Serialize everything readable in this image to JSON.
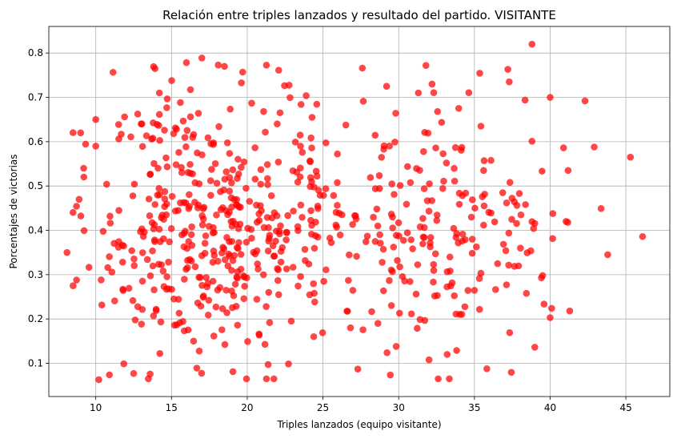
{
  "chart_data": {
    "type": "scatter",
    "title": "Relación entre triples lanzados y resultado del partido. VISITANTE",
    "xlabel": "Triples lanzados (equipo visitante)",
    "ylabel": "Porcentajes de victorias",
    "xlim": [
      6.9,
      47.9
    ],
    "ylim": [
      0.025,
      0.86
    ],
    "xticks": [
      10,
      15,
      20,
      25,
      30,
      35,
      40,
      45
    ],
    "yticks": [
      0.1,
      0.2,
      0.3,
      0.4,
      0.5,
      0.6,
      0.7,
      0.8
    ],
    "grid": true,
    "marker_color": "#ff0000",
    "marker_alpha": 0.72,
    "n_points": 700,
    "points_sample": [
      [
        8.1,
        0.35
      ],
      [
        8.5,
        0.275
      ],
      [
        8.9,
        0.47
      ],
      [
        9.0,
        0.62
      ],
      [
        9.2,
        0.54
      ],
      [
        10.0,
        0.65
      ],
      [
        10.0,
        0.59
      ],
      [
        10.2,
        0.063
      ],
      [
        10.9,
        0.074
      ],
      [
        12.5,
        0.077
      ],
      [
        13.0,
        0.64
      ],
      [
        14.2,
        0.71
      ],
      [
        18.5,
        0.77
      ],
      [
        19.7,
        0.757
      ],
      [
        27.6,
        0.766
      ],
      [
        27.3,
        0.087
      ],
      [
        29.2,
        0.725
      ],
      [
        31.8,
        0.772
      ],
      [
        32.2,
        0.73
      ],
      [
        33.2,
        0.12
      ],
      [
        37.3,
        0.735
      ],
      [
        38.8,
        0.82
      ],
      [
        40.0,
        0.7
      ],
      [
        40.0,
        0.203
      ],
      [
        40.1,
        0.224
      ],
      [
        42.3,
        0.692
      ],
      [
        43.8,
        0.345
      ],
      [
        45.3,
        0.565
      ],
      [
        46.1,
        0.386
      ],
      [
        31.3,
        0.71
      ]
    ]
  }
}
